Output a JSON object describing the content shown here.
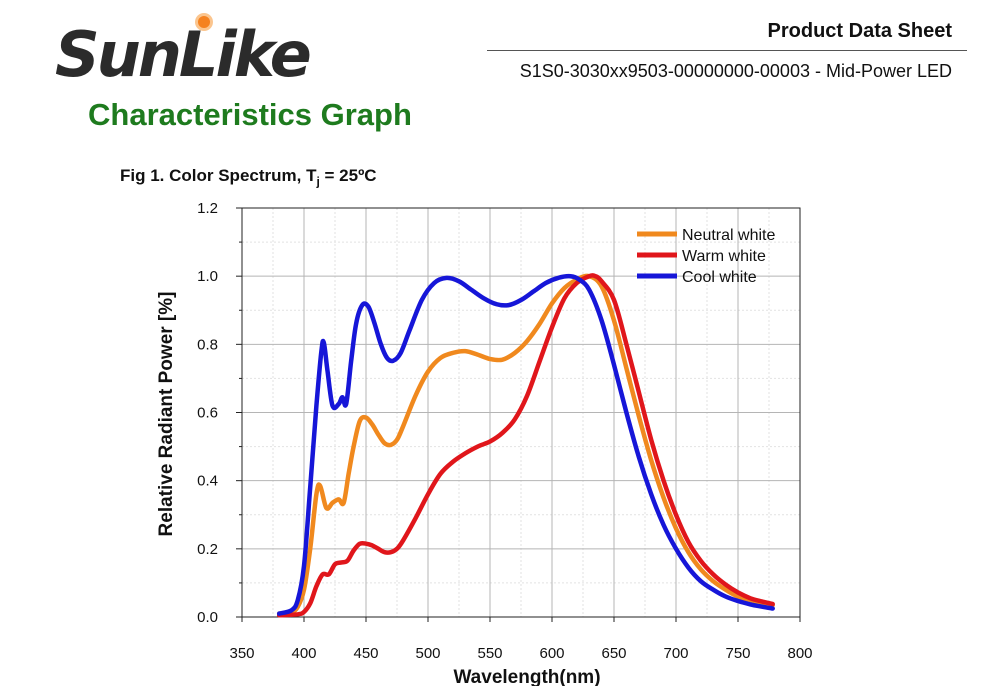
{
  "header": {
    "brand": "SunLike",
    "doc_title": "Product Data Sheet",
    "doc_subtitle": "S1S0-3030xx9503-00000000-00003 - Mid-Power LED",
    "section_title": "Characteristics Graph"
  },
  "figure": {
    "caption_prefix": "Fig 1. Color Spectrum, T",
    "caption_sub": "j",
    "caption_suffix": " = 25ºC"
  },
  "colors": {
    "brand_accent": "#f58220",
    "section_title": "#1e7b1e",
    "neutral": "#f0891e",
    "warm": "#e0161b",
    "cool": "#1616d8"
  },
  "chart_data": {
    "type": "line",
    "title": "",
    "xlabel": "Wavelength(nm)",
    "ylabel": "Relative Radiant Power [%]",
    "xlim": [
      350,
      800
    ],
    "ylim": [
      0,
      1.2
    ],
    "xticks": [
      350,
      400,
      450,
      500,
      550,
      600,
      650,
      700,
      750,
      800
    ],
    "yticks": [
      "0.0",
      "0.2",
      "0.4",
      "0.6",
      "0.8",
      "1.0",
      "1.2"
    ],
    "grid": true,
    "legend_position": "top-right",
    "series": [
      {
        "name": "Neutral white",
        "color": "#f0891e",
        "points": [
          [
            380,
            0.01
          ],
          [
            390,
            0.015
          ],
          [
            395,
            0.03
          ],
          [
            400,
            0.08
          ],
          [
            405,
            0.2
          ],
          [
            410,
            0.36
          ],
          [
            413,
            0.385
          ],
          [
            418,
            0.32
          ],
          [
            423,
            0.335
          ],
          [
            428,
            0.345
          ],
          [
            432,
            0.335
          ],
          [
            436,
            0.42
          ],
          [
            440,
            0.5
          ],
          [
            445,
            0.575
          ],
          [
            450,
            0.585
          ],
          [
            455,
            0.565
          ],
          [
            460,
            0.535
          ],
          [
            465,
            0.51
          ],
          [
            470,
            0.505
          ],
          [
            475,
            0.52
          ],
          [
            480,
            0.56
          ],
          [
            490,
            0.65
          ],
          [
            500,
            0.72
          ],
          [
            510,
            0.76
          ],
          [
            520,
            0.775
          ],
          [
            530,
            0.78
          ],
          [
            540,
            0.77
          ],
          [
            550,
            0.757
          ],
          [
            560,
            0.755
          ],
          [
            570,
            0.775
          ],
          [
            580,
            0.81
          ],
          [
            590,
            0.86
          ],
          [
            600,
            0.92
          ],
          [
            610,
            0.965
          ],
          [
            620,
            0.99
          ],
          [
            630,
            1.0
          ],
          [
            640,
            0.97
          ],
          [
            650,
            0.87
          ],
          [
            660,
            0.73
          ],
          [
            670,
            0.59
          ],
          [
            680,
            0.46
          ],
          [
            690,
            0.35
          ],
          [
            700,
            0.26
          ],
          [
            710,
            0.19
          ],
          [
            720,
            0.14
          ],
          [
            730,
            0.105
          ],
          [
            740,
            0.08
          ],
          [
            750,
            0.06
          ],
          [
            760,
            0.05
          ],
          [
            770,
            0.04
          ],
          [
            778,
            0.035
          ]
        ]
      },
      {
        "name": "Warm white",
        "color": "#e0161b",
        "points": [
          [
            380,
            0.005
          ],
          [
            395,
            0.008
          ],
          [
            400,
            0.015
          ],
          [
            405,
            0.04
          ],
          [
            410,
            0.09
          ],
          [
            415,
            0.125
          ],
          [
            420,
            0.125
          ],
          [
            425,
            0.155
          ],
          [
            430,
            0.16
          ],
          [
            435,
            0.165
          ],
          [
            440,
            0.195
          ],
          [
            445,
            0.215
          ],
          [
            450,
            0.215
          ],
          [
            455,
            0.21
          ],
          [
            460,
            0.2
          ],
          [
            465,
            0.19
          ],
          [
            470,
            0.19
          ],
          [
            475,
            0.2
          ],
          [
            480,
            0.225
          ],
          [
            490,
            0.29
          ],
          [
            500,
            0.36
          ],
          [
            510,
            0.42
          ],
          [
            520,
            0.455
          ],
          [
            530,
            0.48
          ],
          [
            540,
            0.5
          ],
          [
            550,
            0.515
          ],
          [
            560,
            0.54
          ],
          [
            570,
            0.58
          ],
          [
            580,
            0.65
          ],
          [
            590,
            0.75
          ],
          [
            600,
            0.85
          ],
          [
            610,
            0.935
          ],
          [
            620,
            0.98
          ],
          [
            630,
            1.0
          ],
          [
            635,
            1.0
          ],
          [
            640,
            0.985
          ],
          [
            650,
            0.93
          ],
          [
            660,
            0.8
          ],
          [
            670,
            0.66
          ],
          [
            680,
            0.52
          ],
          [
            690,
            0.4
          ],
          [
            700,
            0.3
          ],
          [
            710,
            0.22
          ],
          [
            720,
            0.165
          ],
          [
            730,
            0.125
          ],
          [
            740,
            0.095
          ],
          [
            750,
            0.072
          ],
          [
            760,
            0.055
          ],
          [
            770,
            0.045
          ],
          [
            778,
            0.038
          ]
        ]
      },
      {
        "name": "Cool white",
        "color": "#1616d8",
        "points": [
          [
            380,
            0.01
          ],
          [
            390,
            0.02
          ],
          [
            395,
            0.05
          ],
          [
            400,
            0.15
          ],
          [
            405,
            0.38
          ],
          [
            410,
            0.62
          ],
          [
            414,
            0.78
          ],
          [
            416,
            0.805
          ],
          [
            419,
            0.72
          ],
          [
            423,
            0.62
          ],
          [
            428,
            0.625
          ],
          [
            431,
            0.645
          ],
          [
            434,
            0.625
          ],
          [
            438,
            0.75
          ],
          [
            442,
            0.86
          ],
          [
            447,
            0.915
          ],
          [
            452,
            0.91
          ],
          [
            457,
            0.86
          ],
          [
            462,
            0.8
          ],
          [
            467,
            0.76
          ],
          [
            472,
            0.752
          ],
          [
            478,
            0.775
          ],
          [
            485,
            0.84
          ],
          [
            495,
            0.93
          ],
          [
            505,
            0.98
          ],
          [
            515,
            0.995
          ],
          [
            525,
            0.985
          ],
          [
            535,
            0.96
          ],
          [
            545,
            0.935
          ],
          [
            555,
            0.918
          ],
          [
            565,
            0.915
          ],
          [
            575,
            0.93
          ],
          [
            585,
            0.955
          ],
          [
            595,
            0.98
          ],
          [
            605,
            0.995
          ],
          [
            615,
            1.0
          ],
          [
            622,
            0.99
          ],
          [
            630,
            0.96
          ],
          [
            640,
            0.87
          ],
          [
            650,
            0.74
          ],
          [
            660,
            0.6
          ],
          [
            670,
            0.47
          ],
          [
            680,
            0.36
          ],
          [
            690,
            0.27
          ],
          [
            700,
            0.2
          ],
          [
            710,
            0.145
          ],
          [
            720,
            0.105
          ],
          [
            730,
            0.08
          ],
          [
            740,
            0.06
          ],
          [
            750,
            0.047
          ],
          [
            760,
            0.037
          ],
          [
            770,
            0.03
          ],
          [
            778,
            0.025
          ]
        ]
      }
    ]
  }
}
